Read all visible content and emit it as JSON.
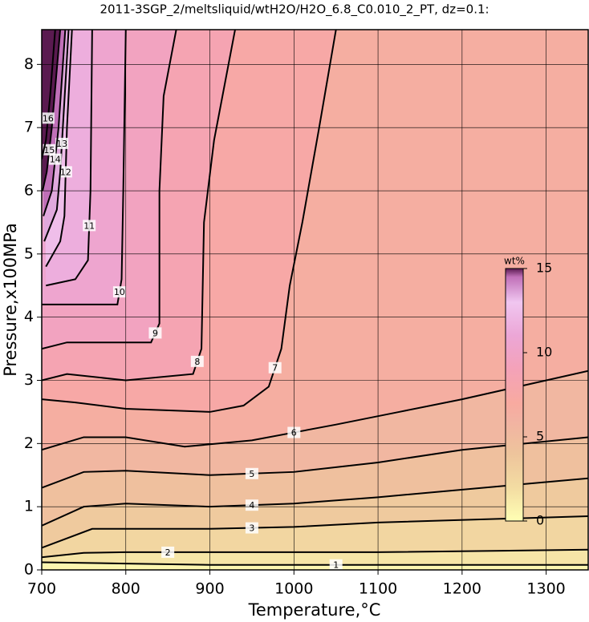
{
  "chart_data": {
    "type": "contour",
    "title": "2011-3SGP_2/meltsliquid/wtH2O/H2O_6.8_C0.010_2_PT, dz=0.1:",
    "x_label": "Temperature,°C",
    "y_label": "Pressure,x100MPa",
    "xlim": [
      700,
      1350
    ],
    "ylim": [
      0,
      8.55
    ],
    "xticks": [
      700,
      800,
      900,
      1000,
      1100,
      1200,
      1300
    ],
    "yticks": [
      0,
      1,
      2,
      3,
      4,
      5,
      6,
      7,
      8
    ],
    "grid": true,
    "colorbar": {
      "label": "wt%",
      "lim": [
        0,
        15
      ],
      "ticks": [
        0,
        5,
        10,
        15
      ]
    },
    "colormap": [
      {
        "value": 0,
        "color": "#ffffb4"
      },
      {
        "value": 2,
        "color": "#f3dca2"
      },
      {
        "value": 4,
        "color": "#eec49c"
      },
      {
        "value": 6,
        "color": "#f2b2a2"
      },
      {
        "value": 7,
        "color": "#f8aaa0"
      },
      {
        "value": 9,
        "color": "#f4a2b8"
      },
      {
        "value": 11,
        "color": "#eca6d6"
      },
      {
        "value": 13,
        "color": "#f0c6f0"
      },
      {
        "value": 14.5,
        "color": "#c070b8"
      },
      {
        "value": 15,
        "color": "#5a1a50"
      }
    ],
    "contours": [
      {
        "level": 1,
        "x": [
          700,
          800,
          900,
          1000,
          1100,
          1200,
          1350
        ],
        "y": [
          0.12,
          0.1,
          0.08,
          0.08,
          0.08,
          0.08,
          0.08
        ]
      },
      {
        "level": 2,
        "x": [
          700,
          750,
          800,
          900,
          1100,
          1350
        ],
        "y": [
          0.2,
          0.27,
          0.28,
          0.28,
          0.28,
          0.32
        ]
      },
      {
        "level": 3,
        "x": [
          700,
          760,
          800,
          900,
          1000,
          1100,
          1350
        ],
        "y": [
          0.35,
          0.65,
          0.65,
          0.65,
          0.68,
          0.75,
          0.85
        ]
      },
      {
        "level": 4,
        "x": [
          700,
          750,
          800,
          900,
          1000,
          1100,
          1350
        ],
        "y": [
          0.7,
          1.0,
          1.05,
          1.0,
          1.05,
          1.15,
          1.45
        ]
      },
      {
        "level": 5,
        "x": [
          700,
          750,
          800,
          900,
          1000,
          1100,
          1200,
          1350
        ],
        "y": [
          1.3,
          1.55,
          1.57,
          1.5,
          1.55,
          1.7,
          1.9,
          2.1
        ]
      },
      {
        "level": 6,
        "x": [
          700,
          750,
          800,
          870,
          950,
          1050,
          1125,
          1200,
          1350
        ],
        "y": [
          1.9,
          2.1,
          2.1,
          1.95,
          2.05,
          2.3,
          2.5,
          2.7,
          3.15
        ]
      },
      {
        "level": 7,
        "x": [
          700,
          740,
          800,
          900,
          940,
          970,
          985,
          995,
          1010,
          1030,
          1050
        ],
        "y": [
          2.7,
          2.65,
          2.55,
          2.5,
          2.6,
          2.9,
          3.5,
          4.5,
          5.5,
          7.0,
          8.55
        ]
      },
      {
        "level": 8,
        "x": [
          700,
          730,
          800,
          880,
          890,
          893,
          905,
          930
        ],
        "y": [
          3.0,
          3.1,
          3.0,
          3.1,
          3.5,
          5.5,
          6.8,
          8.55
        ]
      },
      {
        "level": 9,
        "x": [
          700,
          730,
          780,
          830,
          840,
          840,
          845,
          860
        ],
        "y": [
          3.5,
          3.6,
          3.6,
          3.6,
          3.9,
          6.0,
          7.5,
          8.55
        ]
      },
      {
        "level": 10,
        "x": [
          700,
          730,
          790,
          795,
          797,
          800
        ],
        "y": [
          4.2,
          4.2,
          4.2,
          4.6,
          6.0,
          8.55
        ]
      },
      {
        "level": 11,
        "x": [
          705,
          740,
          755,
          758,
          760
        ],
        "y": [
          4.5,
          4.6,
          4.9,
          6.0,
          8.55
        ]
      },
      {
        "level": 12,
        "x": [
          705,
          722,
          727,
          730,
          736
        ],
        "y": [
          4.8,
          5.2,
          5.6,
          7.0,
          8.55
        ]
      },
      {
        "level": 13,
        "x": [
          703,
          718,
          722,
          726,
          732
        ],
        "y": [
          5.2,
          5.7,
          6.3,
          7.2,
          8.55
        ]
      },
      {
        "level": 14,
        "x": [
          702,
          712,
          720,
          728
        ],
        "y": [
          5.6,
          6.0,
          7.0,
          8.55
        ]
      },
      {
        "level": 15,
        "x": [
          701,
          706,
          712,
          722
        ],
        "y": [
          6.0,
          6.3,
          7.0,
          8.55
        ]
      },
      {
        "level": 16,
        "x": [
          700,
          705,
          710,
          716
        ],
        "y": [
          6.5,
          6.8,
          7.5,
          8.55
        ]
      }
    ]
  }
}
